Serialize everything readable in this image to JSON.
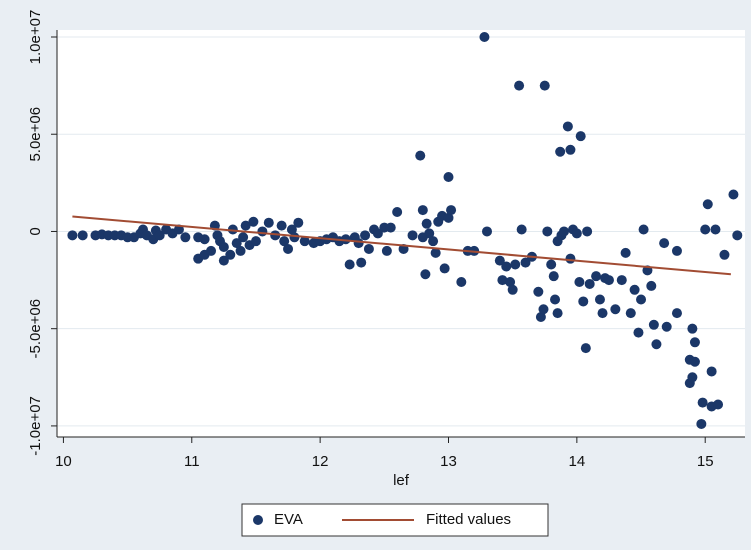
{
  "chart_data": {
    "type": "scatter",
    "x_label": "lef",
    "xlim": [
      9.95,
      15.31
    ],
    "ylim": [
      -10570000,
      10360000
    ],
    "xticks": [
      10,
      11,
      12,
      13,
      14,
      15
    ],
    "yticks": [
      {
        "value": -10000000,
        "label": "-1.0e+07"
      },
      {
        "value": -5000000,
        "label": "-5.0e+06"
      },
      0,
      {
        "value": 5000000,
        "label": "5.0e+06"
      },
      {
        "value": 10000000,
        "label": "1.0e+07"
      }
    ],
    "grid": true,
    "legend": "bottom",
    "series": [
      {
        "name": "EVA",
        "type": "scatter",
        "color": "#1b3768",
        "x": [
          10.07,
          10.15,
          10.25,
          10.3,
          10.35,
          10.4,
          10.45,
          10.5,
          10.55,
          10.6,
          10.62,
          10.65,
          10.7,
          10.72,
          10.75,
          10.8,
          10.85,
          10.9,
          10.95,
          11.05,
          11.1,
          11.05,
          11.1,
          11.15,
          11.18,
          11.2,
          11.22,
          11.25,
          11.25,
          11.3,
          11.32,
          11.35,
          11.38,
          11.4,
          11.42,
          11.45,
          11.48,
          11.5,
          11.55,
          11.6,
          11.65,
          11.7,
          11.72,
          11.75,
          11.78,
          11.8,
          11.83,
          11.88,
          11.95,
          12.0,
          12.05,
          12.1,
          12.15,
          12.2,
          12.23,
          12.27,
          12.3,
          12.32,
          12.35,
          12.38,
          12.42,
          12.45,
          12.5,
          12.52,
          12.55,
          12.6,
          12.65,
          12.72,
          12.78,
          12.8,
          12.8,
          12.82,
          12.83,
          12.85,
          12.88,
          12.9,
          12.92,
          12.95,
          12.97,
          13.0,
          13.0,
          13.02,
          13.1,
          13.15,
          13.2,
          13.28,
          13.3,
          13.4,
          13.42,
          13.45,
          13.48,
          13.5,
          13.52,
          13.55,
          13.57,
          13.6,
          13.65,
          13.7,
          13.72,
          13.74,
          13.75,
          13.77,
          13.8,
          13.82,
          13.83,
          13.85,
          13.85,
          13.87,
          13.88,
          13.9,
          13.93,
          13.95,
          13.95,
          13.97,
          14.0,
          14.02,
          14.03,
          14.05,
          14.07,
          14.08,
          14.1,
          14.15,
          14.18,
          14.2,
          14.22,
          14.25,
          14.3,
          14.35,
          14.38,
          14.42,
          14.45,
          14.48,
          14.5,
          14.52,
          14.55,
          14.58,
          14.6,
          14.62,
          14.68,
          14.7,
          14.78,
          14.78,
          14.9,
          14.92,
          14.88,
          14.88,
          14.9,
          14.92,
          14.97,
          14.98,
          15.0,
          15.02,
          15.05,
          15.05,
          15.08,
          15.1,
          15.15,
          15.22,
          15.25
        ],
        "values": [
          -200000,
          -200000,
          -200000,
          -150000,
          -200000,
          -200000,
          -200000,
          -300000,
          -300000,
          -100000,
          100000,
          -200000,
          -400000,
          50000,
          -200000,
          100000,
          -100000,
          100000,
          -300000,
          -300000,
          -400000,
          -1400000,
          -1200000,
          -1000000,
          300000,
          -200000,
          -500000,
          -800000,
          -1500000,
          -1200000,
          100000,
          -600000,
          -1000000,
          -300000,
          300000,
          -700000,
          500000,
          -500000,
          0,
          450000,
          -200000,
          300000,
          -500000,
          -900000,
          100000,
          -300000,
          450000,
          -500000,
          -600000,
          -500000,
          -400000,
          -300000,
          -500000,
          -400000,
          -1700000,
          -300000,
          -600000,
          -1600000,
          -200000,
          -900000,
          100000,
          -100000,
          200000,
          -1000000,
          200000,
          1000000,
          -900000,
          -200000,
          3900000,
          1100000,
          -300000,
          -2200000,
          400000,
          -100000,
          -500000,
          -1100000,
          500000,
          800000,
          -1900000,
          700000,
          2800000,
          1100000,
          -2600000,
          -1000000,
          -1000000,
          10000000,
          0,
          -1500000,
          -2500000,
          -1800000,
          -2600000,
          -3000000,
          -1700000,
          7500000,
          100000,
          -1600000,
          -1300000,
          -3100000,
          -4400000,
          -4000000,
          7500000,
          0,
          -1700000,
          -2300000,
          -3500000,
          -4200000,
          -500000,
          4100000,
          -200000,
          0,
          5400000,
          4200000,
          -1400000,
          100000,
          -100000,
          -2600000,
          4900000,
          -3600000,
          -6000000,
          0,
          -2700000,
          -2300000,
          -3500000,
          -4200000,
          -2400000,
          -2500000,
          -4000000,
          -2500000,
          -1100000,
          -4200000,
          -3000000,
          -5200000,
          -3500000,
          100000,
          -2000000,
          -2800000,
          -4800000,
          -5800000,
          -600000,
          -4900000,
          -1000000,
          -4200000,
          -5000000,
          -5700000,
          -6600000,
          -7800000,
          -7500000,
          -6700000,
          -9900000,
          -8800000,
          100000,
          1400000,
          -7200000,
          -9000000,
          100000,
          -8900000,
          -1200000,
          1900000,
          -200000
        ]
      },
      {
        "name": "Fitted values",
        "type": "line",
        "color": "#a24c33",
        "x": [
          10.07,
          15.2
        ],
        "values": [
          770000,
          -2200000
        ]
      }
    ]
  }
}
